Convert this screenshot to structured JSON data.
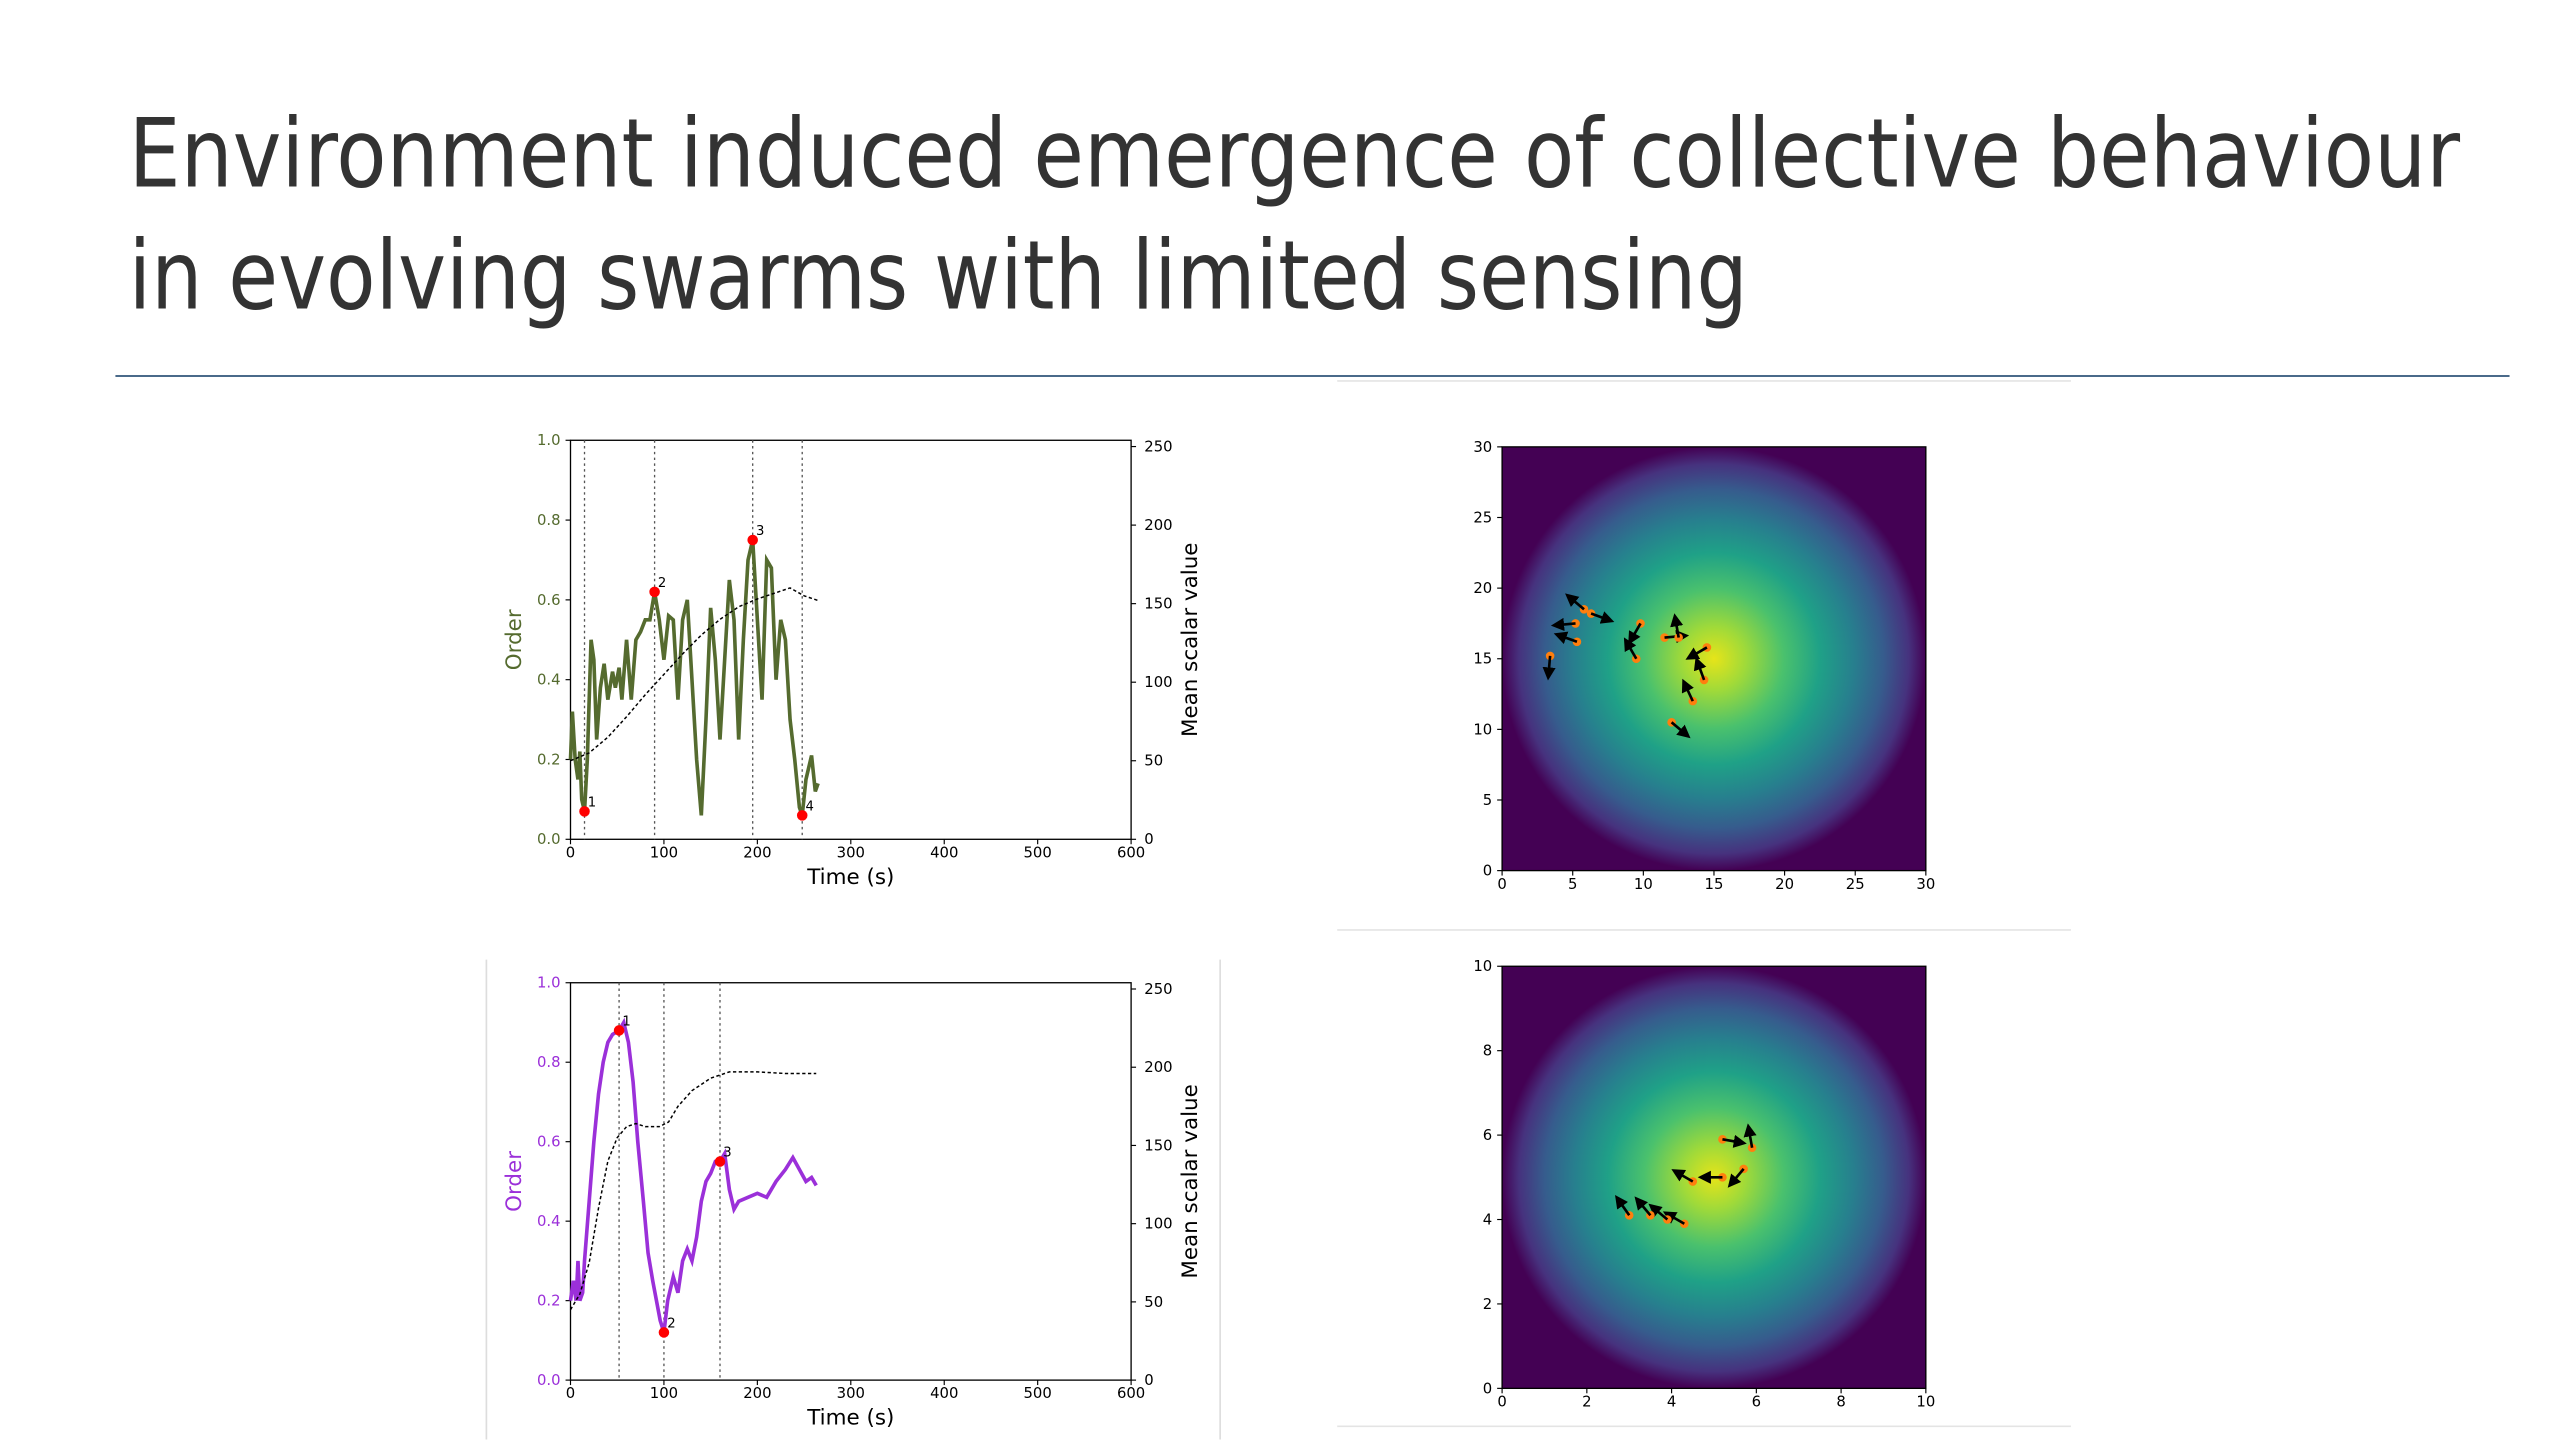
{
  "title": [
    "Environment induced emergence of collective behaviour",
    "in evolving swarms with limited sensing"
  ],
  "chart_data": [
    {
      "type": "line",
      "xlabel": "Time (s)",
      "ylabel": "Order",
      "y2label": "Mean scalar value",
      "color": "#556b2f",
      "xlim": [
        0,
        600
      ],
      "xticks": [
        0,
        100,
        200,
        300,
        400,
        500,
        600
      ],
      "ylim": [
        0,
        1
      ],
      "yticks": [
        {
          "value": 0,
          "label": "0.0"
        },
        {
          "value": 0.2,
          "label": "0.2"
        },
        {
          "value": 0.4,
          "label": "0.4"
        },
        {
          "value": 0.6,
          "label": "0.6"
        },
        {
          "value": 0.8,
          "label": "0.8"
        },
        {
          "value": 1,
          "label": "1.0"
        }
      ],
      "y2lim": [
        0,
        254
      ],
      "y2ticks": [
        0,
        50,
        100,
        150,
        200,
        250
      ],
      "series": [
        {
          "color": "#556b2f",
          "x": [
            0,
            2,
            5,
            8,
            10,
            12,
            15,
            18,
            22,
            25,
            28,
            32,
            36,
            40,
            45,
            48,
            52,
            55,
            60,
            65,
            70,
            75,
            80,
            85,
            90,
            95,
            100,
            105,
            110,
            115,
            120,
            125,
            130,
            135,
            140,
            145,
            150,
            155,
            160,
            165,
            170,
            175,
            180,
            185,
            190,
            195,
            200,
            205,
            210,
            215,
            220,
            225,
            230,
            235,
            240,
            245,
            248,
            252,
            258,
            262,
            265
          ],
          "values": [
            0.2,
            0.32,
            0.2,
            0.15,
            0.22,
            0.1,
            0.07,
            0.2,
            0.5,
            0.45,
            0.25,
            0.38,
            0.44,
            0.35,
            0.42,
            0.38,
            0.43,
            0.35,
            0.5,
            0.35,
            0.5,
            0.52,
            0.55,
            0.55,
            0.62,
            0.55,
            0.45,
            0.56,
            0.55,
            0.35,
            0.55,
            0.6,
            0.4,
            0.2,
            0.06,
            0.3,
            0.58,
            0.45,
            0.25,
            0.45,
            0.65,
            0.55,
            0.25,
            0.5,
            0.7,
            0.75,
            0.55,
            0.35,
            0.7,
            0.68,
            0.4,
            0.55,
            0.5,
            0.3,
            0.2,
            0.08,
            0.06,
            0.15,
            0.21,
            0.12,
            0.14
          ]
        },
        {
          "color": "#000000",
          "axis": "y2",
          "dashed": true,
          "x": [
            0,
            20,
            40,
            60,
            80,
            100,
            120,
            140,
            160,
            180,
            200,
            220,
            235,
            250,
            265
          ],
          "values": [
            50,
            55,
            65,
            78,
            92,
            105,
            118,
            130,
            140,
            148,
            153,
            157,
            160,
            155,
            152
          ]
        }
      ],
      "events": [
        15,
        90,
        195,
        248
      ],
      "markers": {
        "color": "#ff0000",
        "x": [
          15,
          90,
          195,
          248
        ],
        "values": [
          0.07,
          0.62,
          0.75,
          0.06
        ],
        "labels": [
          "1",
          "2",
          "3",
          "4"
        ]
      }
    },
    {
      "type": "line",
      "xlabel": "Time (s)",
      "ylabel": "Order",
      "y2label": "Mean scalar value",
      "color": "#9b30d9",
      "xlim": [
        0,
        600
      ],
      "xticks": [
        0,
        100,
        200,
        300,
        400,
        500,
        600
      ],
      "ylim": [
        0,
        1
      ],
      "yticks": [
        {
          "value": 0,
          "label": "0.0"
        },
        {
          "value": 0.2,
          "label": "0.2"
        },
        {
          "value": 0.4,
          "label": "0.4"
        },
        {
          "value": 0.6,
          "label": "0.6"
        },
        {
          "value": 0.8,
          "label": "0.8"
        },
        {
          "value": 1,
          "label": "1.0"
        }
      ],
      "y2lim": [
        0,
        254
      ],
      "y2ticks": [
        0,
        50,
        100,
        150,
        200,
        250
      ],
      "series": [
        {
          "color": "#9b30d9",
          "x": [
            0,
            3,
            6,
            8,
            10,
            13,
            15,
            20,
            25,
            30,
            35,
            40,
            45,
            52,
            57,
            62,
            67,
            72,
            78,
            83,
            88,
            92,
            96,
            100,
            104,
            110,
            115,
            120,
            125,
            130,
            135,
            140,
            145,
            150,
            155,
            160,
            165,
            170,
            175,
            180,
            190,
            200,
            210,
            220,
            230,
            238,
            245,
            252,
            258,
            263
          ],
          "values": [
            0.2,
            0.25,
            0.2,
            0.3,
            0.2,
            0.22,
            0.3,
            0.45,
            0.6,
            0.72,
            0.8,
            0.85,
            0.87,
            0.88,
            0.9,
            0.85,
            0.75,
            0.6,
            0.45,
            0.32,
            0.25,
            0.2,
            0.15,
            0.12,
            0.2,
            0.26,
            0.22,
            0.3,
            0.33,
            0.3,
            0.36,
            0.45,
            0.5,
            0.52,
            0.55,
            0.55,
            0.57,
            0.48,
            0.43,
            0.45,
            0.46,
            0.47,
            0.46,
            0.5,
            0.53,
            0.56,
            0.53,
            0.5,
            0.51,
            0.49
          ]
        },
        {
          "color": "#000000",
          "axis": "y2",
          "dashed": true,
          "x": [
            0,
            10,
            20,
            30,
            40,
            50,
            60,
            70,
            80,
            95,
            105,
            115,
            130,
            150,
            170,
            200,
            230,
            263
          ],
          "values": [
            45,
            55,
            75,
            110,
            140,
            155,
            162,
            164,
            162,
            162,
            165,
            175,
            185,
            193,
            197,
            197,
            196,
            196
          ]
        }
      ],
      "events": [
        52,
        100,
        160
      ],
      "markers": {
        "color": "#ff0000",
        "x": [
          52,
          100,
          160
        ],
        "values": [
          0.88,
          0.12,
          0.55
        ],
        "labels": [
          "1",
          "2",
          "3"
        ]
      }
    },
    {
      "type": "scatter",
      "color": "#ff7f0e",
      "xlim": [
        0,
        30
      ],
      "ylim": [
        0,
        30
      ],
      "xticks": [
        0,
        5,
        10,
        15,
        20,
        25,
        30
      ],
      "yticks": [
        0,
        5,
        10,
        15,
        20,
        25,
        30
      ],
      "x": [
        3.4,
        5.3,
        5.8,
        6.3,
        5.2,
        9.8,
        9.5,
        11.5,
        12.5,
        14.5,
        14.3,
        13.5,
        12
      ],
      "values": [
        15.2,
        16.2,
        18.5,
        18.2,
        17.5,
        17.5,
        15,
        16.5,
        16.5,
        15.8,
        13.5,
        12,
        10.5
      ],
      "angles": [
        -95,
        160,
        140,
        -20,
        185,
        -120,
        120,
        5,
        100,
        -150,
        110,
        115,
        -40
      ]
    },
    {
      "type": "scatter",
      "color": "#ff7f0e",
      "xlim": [
        0,
        10
      ],
      "ylim": [
        0,
        10
      ],
      "xticks": [
        0,
        2,
        4,
        6,
        8,
        10
      ],
      "yticks": [
        0,
        2,
        4,
        6,
        8,
        10
      ],
      "x": [
        5.2,
        5.9,
        5.7,
        5.2,
        4.5,
        4.3,
        3.9,
        3.5,
        3.0
      ],
      "values": [
        5.9,
        5.7,
        5.2,
        5.0,
        4.9,
        3.9,
        4.0,
        4.1,
        4.1
      ],
      "angles": [
        -10,
        100,
        -130,
        180,
        150,
        150,
        140,
        130,
        125
      ]
    }
  ]
}
